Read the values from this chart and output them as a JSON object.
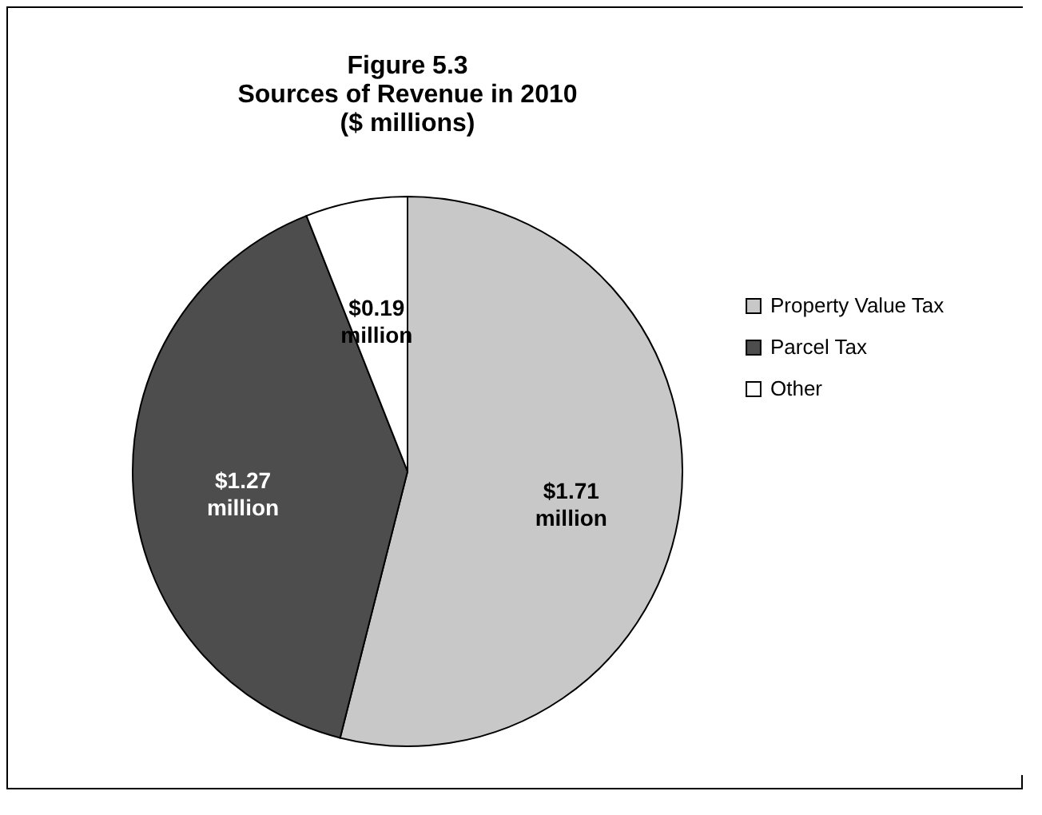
{
  "chart_data": {
    "type": "pie",
    "title": "Figure 5.3\nSources of Revenue in 2010\n($ millions)",
    "categories": [
      "Property Value Tax",
      "Parcel Tax",
      "Other"
    ],
    "values": [
      1.71,
      1.27,
      0.19
    ],
    "colors": [
      "#c8c8c8",
      "#4d4d4d",
      "#ffffff"
    ],
    "value_labels": [
      "$1.71 million",
      "$1.27 million",
      "$0.19 million"
    ],
    "legend": "right"
  }
}
